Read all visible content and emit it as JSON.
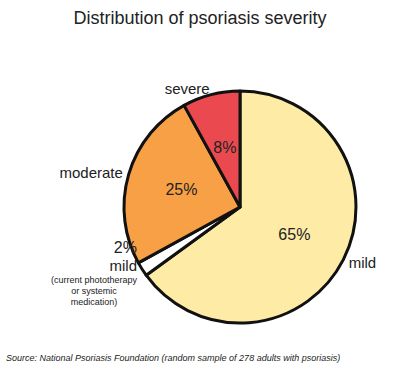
{
  "chart_data": {
    "type": "pie",
    "title": "Distribution of psoriasis severity",
    "categories": [
      "mild",
      "mild (current phototherapy or systemic medication)",
      "moderate",
      "severe"
    ],
    "values": [
      65,
      2,
      25,
      8
    ],
    "value_labels": [
      "65%",
      "2%",
      "25%",
      "8%"
    ],
    "colors": [
      "#fdeba6",
      "#ffffff",
      "#f7a045",
      "#ea4a4f"
    ],
    "data_labels": true,
    "annotations": [
      "Source: National Psoriasis Foundation (random sample of 278 adults with psoriasis)"
    ]
  }
}
